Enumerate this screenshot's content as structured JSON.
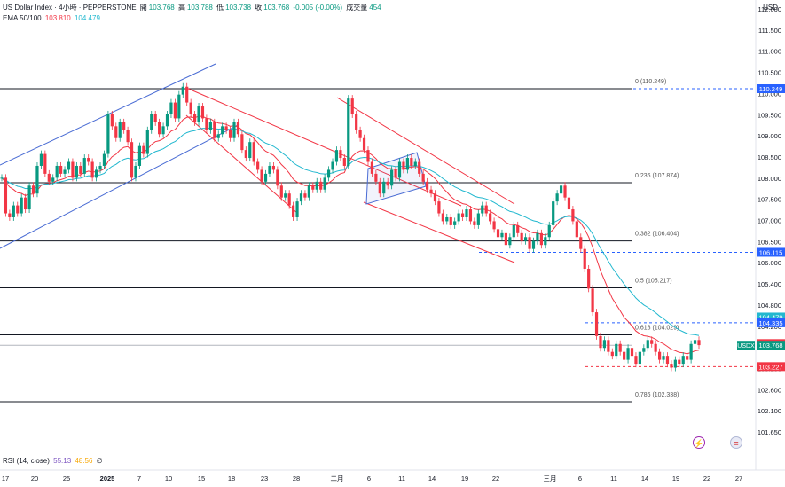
{
  "header": {
    "symbol": "US Dollar Index · 4小時 · PEPPERSTONE",
    "open_label": "開",
    "open": "103.768",
    "high_label": "高",
    "high": "103.788",
    "low_label": "低",
    "low": "103.738",
    "close_label": "收",
    "close": "103.768",
    "change": "-0.005 (-0.00%)",
    "volume_label": "成交量",
    "volume": "454",
    "ema_label": "EMA 50/100",
    "ema50": "103.810",
    "ema100": "104.479"
  },
  "currency": "USD",
  "rsi": {
    "label": "RSI (14, close)",
    "value1": "55.13",
    "value2": "48.56",
    "value3": "∅"
  },
  "colors": {
    "up": "#089981",
    "down": "#f23645",
    "ema50": "#f23645",
    "ema100": "#22b8cf",
    "fib_line": "#131722",
    "channel_red": "#f23645",
    "channel_blue": "#4a6cd4",
    "dashed_blue": "#2962ff",
    "dashed_red": "#f23645"
  },
  "icons": {
    "lightning": "lightning-icon",
    "flag": "us-flag-icon"
  },
  "chart_data": {
    "type": "candlestick",
    "title": "US Dollar Index · 4小時 · PEPPERSTONE",
    "ylim": [
      101.2,
      112.6
    ],
    "y_ticks": [
      "112.000",
      "111.500",
      "111.000",
      "110.500",
      "110.000",
      "109.500",
      "109.000",
      "108.500",
      "108.000",
      "107.500",
      "107.000",
      "106.500",
      "106.000",
      "105.400",
      "104.800",
      "104.200",
      "103.600",
      "103.100",
      "102.600",
      "102.100",
      "101.650"
    ],
    "x_ticks": [
      "17",
      "20",
      "25",
      "2025",
      "7",
      "10",
      "15",
      "18",
      "23",
      "28",
      "二月",
      "6",
      "11",
      "14",
      "19",
      "22",
      "三月",
      "6",
      "11",
      "14",
      "19",
      "22",
      "27"
    ],
    "fib_levels": [
      {
        "label": "0 (110.249)",
        "value": 110.249
      },
      {
        "label": "0.236 (107.874)",
        "value": 107.874
      },
      {
        "label": "0.382 (106.404)",
        "value": 106.404
      },
      {
        "label": "0.5 (105.217)",
        "value": 105.217
      },
      {
        "label": "0.618 (104.029)",
        "value": 104.029
      },
      {
        "label": "0.786 (102.338)",
        "value": 102.338
      }
    ],
    "price_tags": [
      {
        "label": "110.249",
        "value": 110.249,
        "color": "#2962ff"
      },
      {
        "label": "106.115",
        "value": 106.115,
        "color": "#2962ff"
      },
      {
        "label": "104.479",
        "value": 104.479,
        "color": "#22b8cf"
      },
      {
        "label": "104.335",
        "value": 104.335,
        "color": "#2962ff"
      },
      {
        "label": "103.810",
        "value": 103.81,
        "color": "#f23645"
      },
      {
        "label": "103.768",
        "value": 103.768,
        "color": "#089981"
      },
      {
        "label": "103.227",
        "value": 103.227,
        "color": "#f23645"
      }
    ],
    "symbol_tag": "USDX",
    "price_path": [
      108.0,
      107.1,
      107.0,
      107.3,
      107.1,
      107.5,
      107.2,
      107.8,
      107.6,
      108.3,
      108.6,
      108.1,
      107.9,
      108.0,
      108.3,
      108.1,
      108.2,
      108.4,
      108.0,
      108.3,
      108.1,
      108.5,
      108.4,
      108.0,
      108.2,
      108.3,
      108.6,
      109.6,
      109.3,
      109.0,
      109.4,
      109.2,
      108.9,
      108.0,
      108.3,
      108.8,
      108.6,
      109.2,
      109.6,
      109.4,
      109.1,
      109.3,
      109.6,
      109.9,
      109.5,
      110.1,
      110.3,
      109.9,
      109.6,
      109.4,
      109.8,
      109.5,
      109.2,
      109.4,
      109.0,
      109.1,
      109.3,
      109.2,
      109.0,
      109.4,
      109.1,
      108.7,
      108.5,
      108.9,
      108.4,
      108.2,
      107.9,
      108.1,
      108.3,
      108.2,
      107.8,
      107.5,
      107.6,
      107.3,
      107.0,
      107.4,
      107.6,
      107.5,
      107.8,
      107.7,
      107.9,
      107.7,
      108.0,
      108.2,
      108.4,
      108.7,
      108.5,
      108.3,
      110.0,
      109.6,
      109.2,
      109.0,
      108.7,
      108.4,
      108.1,
      107.9,
      107.6,
      107.9,
      107.8,
      108.2,
      108.0,
      108.4,
      108.2,
      108.5,
      108.3,
      108.4,
      108.1,
      107.9,
      107.7,
      107.6,
      107.4,
      107.1,
      106.9,
      107.0,
      106.8,
      106.9,
      107.1,
      107.0,
      107.2,
      106.9,
      106.8,
      107.1,
      107.3,
      107.1,
      106.9,
      106.7,
      106.5,
      106.6,
      106.3,
      106.5,
      106.8,
      106.6,
      106.4,
      106.5,
      106.2,
      106.4,
      106.6,
      106.3,
      106.5,
      106.8,
      107.4,
      107.6,
      107.8,
      107.5,
      107.2,
      106.9,
      106.5,
      106.2,
      105.7,
      105.2,
      104.6,
      104.0,
      103.7,
      103.9,
      103.6,
      103.5,
      103.8,
      103.6,
      103.4,
      103.7,
      103.5,
      103.3,
      103.6,
      103.7,
      103.9,
      103.8,
      103.6,
      103.4,
      103.5,
      103.3,
      103.2,
      103.4,
      103.3,
      103.5,
      103.4,
      103.8,
      103.9,
      103.77
    ]
  }
}
